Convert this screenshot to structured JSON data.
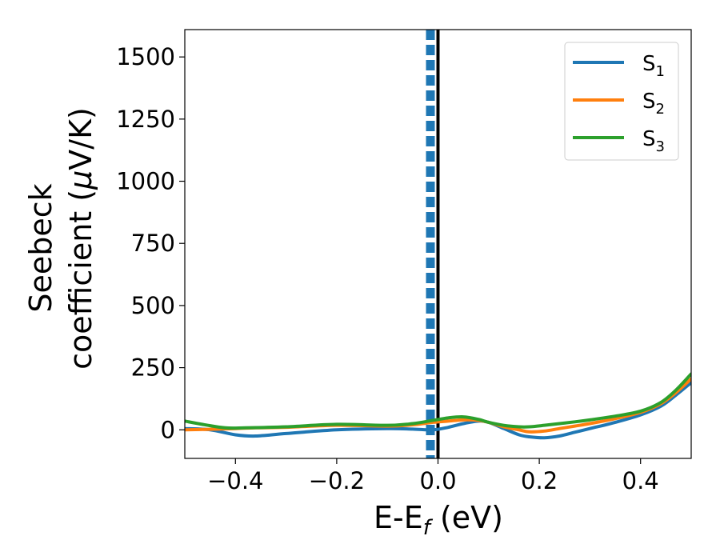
{
  "chart_data": {
    "type": "line",
    "title": "",
    "xlabel_main": "E-E",
    "xlabel_sub": "f",
    "xlabel_unit": " (eV)",
    "ylabel_line1": "Seebeck",
    "ylabel_line2_text": "coefficient  (",
    "ylabel_line2_mu": "μ",
    "ylabel_line2_unit": "V/K)",
    "xlim": [
      -0.5,
      0.5
    ],
    "ylim": [
      -115,
      1610
    ],
    "xticks": [
      -0.4,
      -0.2,
      0.0,
      0.2,
      0.4
    ],
    "xtick_labels": [
      "−0.4",
      "−0.2",
      "0.0",
      "0.2",
      "0.4"
    ],
    "yticks": [
      0,
      250,
      500,
      750,
      1000,
      1250,
      1500
    ],
    "ytick_labels": [
      "0",
      "250",
      "500",
      "750",
      "1000",
      "1250",
      "1500"
    ],
    "grid": false,
    "legend_position": "top-right",
    "reference_lines": [
      {
        "x": -0.015,
        "color": "#1f77b4",
        "style": "dashed"
      },
      {
        "x": 0.0,
        "color": "#000000",
        "style": "solid"
      }
    ],
    "series": [
      {
        "name_main": "S",
        "name_sub": "1",
        "color": "#1f77b4",
        "x": [
          -0.5,
          -0.45,
          -0.4,
          -0.36,
          -0.3,
          -0.2,
          -0.1,
          -0.05,
          -0.01,
          0.02,
          0.05,
          0.08,
          0.1,
          0.13,
          0.16,
          0.18,
          0.21,
          0.24,
          0.27,
          0.3,
          0.35,
          0.4,
          0.44,
          0.47,
          0.5
        ],
        "y": [
          5,
          0,
          -20,
          -25,
          -15,
          0,
          5,
          3,
          0,
          10,
          25,
          35,
          30,
          5,
          -20,
          -28,
          -32,
          -25,
          -10,
          5,
          30,
          60,
          95,
          140,
          190
        ]
      },
      {
        "name_main": "S",
        "name_sub": "2",
        "color": "#ff7f0e",
        "x": [
          -0.5,
          -0.45,
          -0.4,
          -0.36,
          -0.3,
          -0.2,
          -0.1,
          -0.05,
          -0.01,
          0.02,
          0.05,
          0.08,
          0.1,
          0.13,
          0.16,
          0.18,
          0.21,
          0.24,
          0.27,
          0.3,
          0.35,
          0.4,
          0.44,
          0.47,
          0.5
        ],
        "y": [
          0,
          2,
          5,
          8,
          10,
          18,
          15,
          20,
          30,
          35,
          40,
          38,
          30,
          12,
          0,
          -8,
          -5,
          5,
          15,
          25,
          45,
          70,
          105,
          150,
          205
        ]
      },
      {
        "name_main": "S",
        "name_sub": "3",
        "color": "#2ca02c",
        "x": [
          -0.5,
          -0.46,
          -0.42,
          -0.38,
          -0.3,
          -0.2,
          -0.1,
          -0.05,
          -0.01,
          0.02,
          0.05,
          0.08,
          0.1,
          0.13,
          0.16,
          0.18,
          0.21,
          0.24,
          0.27,
          0.3,
          0.35,
          0.4,
          0.44,
          0.47,
          0.5
        ],
        "y": [
          35,
          20,
          8,
          8,
          12,
          22,
          18,
          25,
          38,
          48,
          52,
          42,
          30,
          18,
          12,
          12,
          18,
          25,
          32,
          40,
          55,
          75,
          110,
          160,
          225
        ]
      }
    ]
  }
}
